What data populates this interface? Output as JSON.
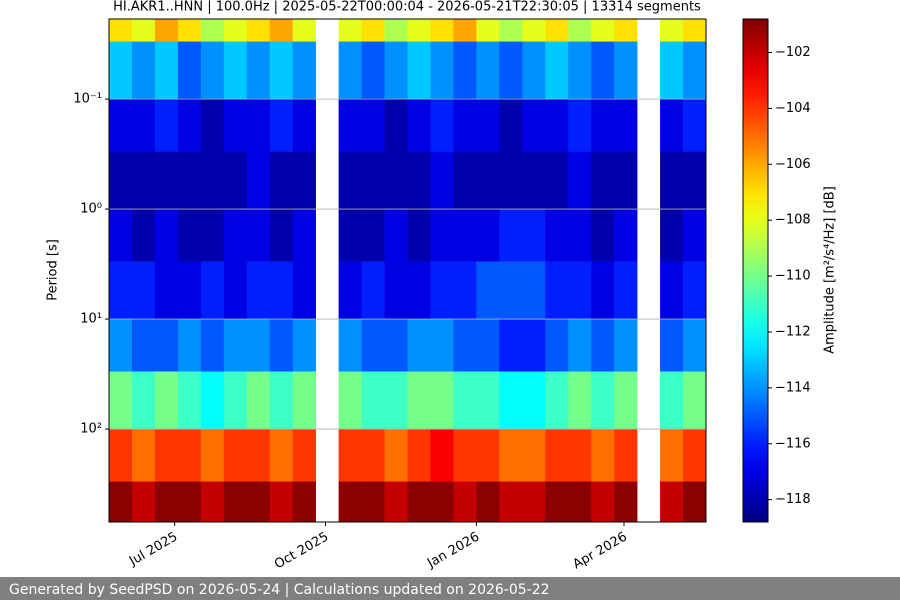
{
  "chart_data": {
    "type": "heatmap",
    "title": "HI.AKR1..HNN | 100.0Hz | 2025-05-22T00:00:04 - 2026-05-21T22:30:05 | 13314 segments",
    "ylabel": "Period [s]",
    "colorbar_label": "Amplitude [m²/s⁴/Hz] [dB]",
    "footer": "Generated by SeedPSD on 2026-05-24 | Calculations updated on 2026-05-22",
    "colormap": "jet",
    "yscale": "log",
    "y_inverted": true,
    "grid": true,
    "xlim": [
      "2025-05-22",
      "2026-05-21"
    ],
    "xticks": [
      {
        "value": "2025-07",
        "label": "Jul 2025"
      },
      {
        "value": "2025-10",
        "label": "Oct 2025"
      },
      {
        "value": "2026-01",
        "label": "Jan 2026"
      },
      {
        "value": "2026-04",
        "label": "Apr 2026"
      }
    ],
    "ylim": [
      0.0187,
      700
    ],
    "yticks": [
      {
        "value": 0.1,
        "label": "10⁻¹"
      },
      {
        "value": 1,
        "label": "10⁰"
      },
      {
        "value": 10,
        "label": "10¹"
      },
      {
        "value": 100,
        "label": "10²"
      }
    ],
    "clim": [
      -118.8,
      -100.8
    ],
    "cticks": [
      {
        "value": -102,
        "label": "−102"
      },
      {
        "value": -104,
        "label": "−104"
      },
      {
        "value": -106,
        "label": "−106"
      },
      {
        "value": -108,
        "label": "−108"
      },
      {
        "value": -110,
        "label": "−110"
      },
      {
        "value": -112,
        "label": "−112"
      },
      {
        "value": -114,
        "label": "−114"
      },
      {
        "value": -116,
        "label": "−116"
      },
      {
        "value": -118,
        "label": "−118"
      }
    ],
    "x": [
      "2025-05-22",
      "2025-06-05",
      "2025-06-19",
      "2025-07-03",
      "2025-07-17",
      "2025-07-31",
      "2025-08-14",
      "2025-08-28",
      "2025-09-11",
      "2025-09-25",
      "2025-10-09",
      "2025-10-23",
      "2025-11-06",
      "2025-11-20",
      "2025-12-04",
      "2025-12-18",
      "2026-01-01",
      "2026-01-15",
      "2026-01-29",
      "2026-02-12",
      "2026-02-26",
      "2026-03-12",
      "2026-03-26",
      "2026-04-09",
      "2026-04-23",
      "2026-05-07"
    ],
    "y": [
      0.0187,
      0.03,
      0.1,
      0.3,
      1,
      3,
      10,
      30,
      100,
      300,
      700
    ],
    "values": [
      [
        -107,
        -108,
        -106,
        -107,
        -109,
        -108,
        -107,
        -106,
        -108,
        null,
        -108,
        -107,
        -109,
        -108,
        -107,
        -106,
        -108,
        -109,
        -108,
        -107,
        -109,
        -108,
        -107,
        null,
        -108,
        -107
      ],
      [
        -113,
        -114,
        -113,
        -115,
        -114,
        -113,
        -114,
        -113,
        -114,
        null,
        -114,
        -115,
        -114,
        -113,
        -114,
        -115,
        -114,
        -115,
        -114,
        -113,
        -114,
        -115,
        -114,
        null,
        -113,
        -114
      ],
      [
        -117,
        -117,
        -116,
        -117,
        -118,
        -117,
        -117,
        -116,
        -117,
        null,
        -117,
        -117,
        -118,
        -117,
        -116,
        -117,
        -117,
        -118,
        -117,
        -117,
        -116,
        -117,
        -117,
        null,
        -117,
        -116
      ],
      [
        -118,
        -118,
        -118,
        -118,
        -118,
        -118,
        -117,
        -118,
        -118,
        null,
        -118,
        -118,
        -118,
        -118,
        -117,
        -118,
        -118,
        -118,
        -118,
        -118,
        -117,
        -118,
        -118,
        null,
        -118,
        -118
      ],
      [
        -117,
        -118,
        -117,
        -118,
        -118,
        -117,
        -117,
        -118,
        -117,
        null,
        -118,
        -118,
        -117,
        -118,
        -117,
        -117,
        -117,
        -116,
        -116,
        -117,
        -117,
        -118,
        -117,
        null,
        -118,
        -117
      ],
      [
        -116,
        -116,
        -117,
        -117,
        -116,
        -117,
        -116,
        -116,
        -117,
        null,
        -117,
        -116,
        -117,
        -117,
        -116,
        -116,
        -115,
        -115,
        -115,
        -116,
        -116,
        -117,
        -116,
        null,
        -117,
        -116
      ],
      [
        -114,
        -115,
        -115,
        -114,
        -115,
        -114,
        -114,
        -115,
        -114,
        null,
        -114,
        -115,
        -115,
        -114,
        -114,
        -115,
        -115,
        -116,
        -116,
        -115,
        -114,
        -115,
        -114,
        null,
        -115,
        -114
      ],
      [
        -110,
        -111,
        -110,
        -111,
        -112,
        -111,
        -110,
        -111,
        -110,
        null,
        -110,
        -111,
        -111,
        -110,
        -110,
        -111,
        -111,
        -112,
        -112,
        -111,
        -110,
        -111,
        -110,
        null,
        -111,
        -110
      ],
      [
        -104,
        -105,
        -104,
        -104,
        -105,
        -104,
        -104,
        -105,
        -104,
        null,
        -104,
        -104,
        -105,
        -104,
        -103,
        -104,
        -104,
        -105,
        -105,
        -104,
        -104,
        -105,
        -104,
        null,
        -105,
        -104
      ],
      [
        -101,
        -102,
        -101,
        -101,
        -102,
        -101,
        -101,
        -102,
        -101,
        null,
        -101,
        -101,
        -102,
        -101,
        -101,
        -102,
        -101,
        -102,
        -102,
        -101,
        -101,
        -102,
        -101,
        null,
        -102,
        -101
      ]
    ]
  }
}
